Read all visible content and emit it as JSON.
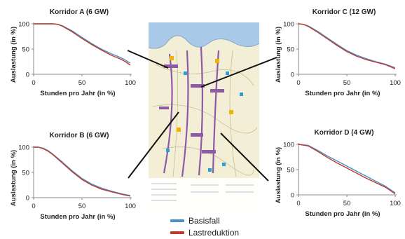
{
  "colors": {
    "basisfall": "#4a90c8",
    "lastreduktion": "#c0392b",
    "axis": "#888888",
    "pointer_line": "#111111"
  },
  "legend": [
    {
      "name": "Basisfall",
      "color": "#4a90c8"
    },
    {
      "name": "Lastreduktion",
      "color": "#c0392b"
    }
  ],
  "chart_data": [
    {
      "type": "line",
      "title": "Korridor A (6 GW)",
      "xlabel": "Stunden pro Jahr (in %)",
      "ylabel": "Auslastung (in %)",
      "xlim": [
        0,
        100
      ],
      "ylim": [
        0,
        100
      ],
      "xticks": [
        "0",
        "50",
        "100"
      ],
      "yticks": [
        "0",
        "50",
        "100"
      ],
      "x": [
        0,
        10,
        20,
        25,
        30,
        40,
        50,
        60,
        70,
        80,
        90,
        95,
        100
      ],
      "series": [
        {
          "name": "Basisfall",
          "values": [
            100,
            100,
            100,
            99,
            96,
            86,
            73,
            61,
            50,
            41,
            33,
            28,
            22
          ]
        },
        {
          "name": "Lastreduktion",
          "values": [
            100,
            100,
            100,
            99,
            95,
            84,
            71,
            59,
            48,
            38,
            30,
            25,
            18
          ]
        }
      ]
    },
    {
      "type": "line",
      "title": "Korridor B (6 GW)",
      "xlabel": "Stunden pro Jahr (in %)",
      "ylabel": "Auslastung (in %)",
      "xlim": [
        0,
        100
      ],
      "ylim": [
        0,
        100
      ],
      "xticks": [
        "0",
        "50",
        "100"
      ],
      "yticks": [
        "0",
        "50",
        "100"
      ],
      "x": [
        0,
        5,
        10,
        15,
        20,
        30,
        40,
        50,
        60,
        70,
        80,
        90,
        100
      ],
      "series": [
        {
          "name": "Basisfall",
          "values": [
            100,
            100,
            98,
            93,
            86,
            70,
            53,
            38,
            27,
            19,
            13,
            8,
            4
          ]
        },
        {
          "name": "Lastreduktion",
          "values": [
            100,
            100,
            97,
            92,
            85,
            68,
            51,
            36,
            25,
            17,
            12,
            7,
            3
          ]
        }
      ]
    },
    {
      "type": "line",
      "title": "Korridor C (12 GW)",
      "xlabel": "Stunden pro Jahr (in %)",
      "ylabel": "Auslastung (in %)",
      "xlim": [
        0,
        100
      ],
      "ylim": [
        0,
        100
      ],
      "xticks": [
        "0",
        "50",
        "100"
      ],
      "yticks": [
        "0",
        "50",
        "100"
      ],
      "x": [
        0,
        5,
        10,
        20,
        30,
        40,
        50,
        60,
        70,
        80,
        90,
        100
      ],
      "series": [
        {
          "name": "Basisfall",
          "values": [
            100,
            99,
            96,
            85,
            72,
            59,
            47,
            38,
            31,
            25,
            20,
            13
          ]
        },
        {
          "name": "Lastreduktion",
          "values": [
            100,
            99,
            95,
            83,
            70,
            57,
            45,
            36,
            29,
            24,
            19,
            11
          ]
        }
      ]
    },
    {
      "type": "line",
      "title": "Korridor D (4 GW)",
      "xlabel": "Stunden pro Jahr (in %)",
      "ylabel": "Auslastung (in %)",
      "xlim": [
        0,
        100
      ],
      "ylim": [
        0,
        100
      ],
      "xticks": [
        "0",
        "50",
        "100"
      ],
      "yticks": [
        "0",
        "50",
        "100"
      ],
      "x": [
        0,
        10,
        20,
        30,
        40,
        50,
        60,
        70,
        80,
        90,
        100
      ],
      "series": [
        {
          "name": "Basisfall",
          "values": [
            100,
            98,
            88,
            77,
            67,
            57,
            47,
            37,
            27,
            17,
            4
          ]
        },
        {
          "name": "Lastreduktion",
          "values": [
            100,
            97,
            86,
            74,
            63,
            53,
            43,
            33,
            24,
            15,
            2
          ]
        }
      ]
    }
  ]
}
